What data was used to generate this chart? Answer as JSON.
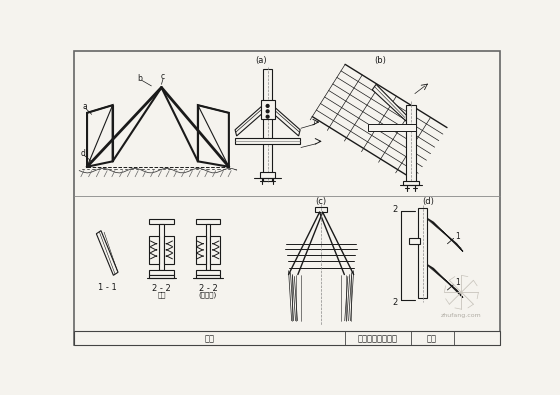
{
  "title": "三铰拱式天窗节点",
  "page_label": "图页",
  "fig_label": "图名",
  "bg_color": "#f5f3ee",
  "line_color": "#1a1a1a",
  "caption_a": "(a)",
  "caption_b": "(b)",
  "caption_c": "(c)",
  "caption_d": "(d)",
  "label_11": "1 - 1",
  "label_22a": "2 - 2",
  "label_22b": "2 - 2",
  "label_22a_sub": "钢柱",
  "label_22b_sub": "(铝柱边)",
  "labels": [
    "a",
    "b",
    "c",
    "d"
  ]
}
